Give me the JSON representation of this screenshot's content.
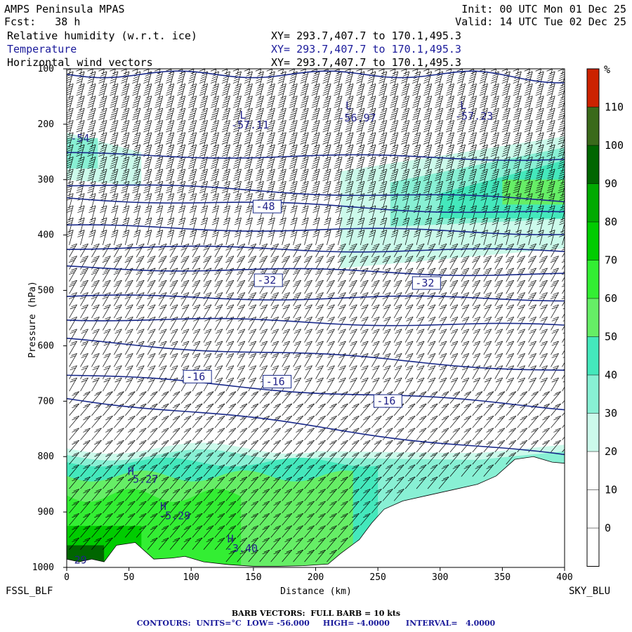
{
  "header": {
    "model": "AMPS Peninsula MPAS",
    "fcst": "Fcst:   38 h",
    "init": "Init: 00 UTC Mon 01 Dec 25",
    "valid": "Valid: 14 UTC Tue 02 Dec 25",
    "fields": [
      {
        "name": "Relative humidity (w.r.t. ice)",
        "xy": "XY= 293.7,407.7 to 170.1,495.3",
        "color": "#000000"
      },
      {
        "name": "Temperature",
        "xy": "XY= 293.7,407.7 to 170.1,495.3",
        "color": "#1a1a9a"
      },
      {
        "name": "Horizontal wind vectors",
        "xy": "XY= 293.7,407.7 to 170.1,495.3",
        "color": "#000000"
      }
    ]
  },
  "footer": {
    "barb": "BARB VECTORS:  FULL BARB = 10 kts",
    "contours": "CONTOURS:  UNITS=°C  LOW= -56.000     HIGH= -4.0000      INTERVAL=   4.0000"
  },
  "chart_data": {
    "type": "contour",
    "xlabel": "Distance (km)",
    "ylabel": "Pressure (hPa)",
    "xlim": [
      0,
      400
    ],
    "ylim": [
      1000,
      100
    ],
    "x_ticks": [
      0,
      50,
      100,
      150,
      200,
      250,
      300,
      350,
      400
    ],
    "y_ticks": [
      100,
      200,
      300,
      400,
      500,
      600,
      700,
      800,
      900,
      1000
    ],
    "endpoint_left": "FSSL_BLF",
    "endpoint_right": "SKY_BLU",
    "colorbar": {
      "unit": "%",
      "labels": [
        0,
        10,
        20,
        30,
        40,
        50,
        60,
        70,
        80,
        90,
        100,
        110
      ],
      "colors": [
        "#ffffff",
        "#ffffff",
        "#ffffff",
        "#ccfaeb",
        "#88f0d4",
        "#44e8bc",
        "#66ee66",
        "#33ee33",
        "#00cc00",
        "#00aa00",
        "#006600",
        "#3a6a1a",
        "#cc2200"
      ]
    },
    "temperature_labels": [
      {
        "text": "-54",
        "x": 3,
        "p": 232
      },
      {
        "text": "-57.11",
        "x": 132,
        "p": 208
      },
      {
        "text": "-56.97",
        "x": 218,
        "p": 195
      },
      {
        "text": "-57.23",
        "x": 312,
        "p": 192
      },
      {
        "text": "-48",
        "x": 152,
        "p": 355
      },
      {
        "text": "-32",
        "x": 153,
        "p": 488
      },
      {
        "text": "-32",
        "x": 280,
        "p": 493
      },
      {
        "text": "-16",
        "x": 96,
        "p": 662
      },
      {
        "text": "-16",
        "x": 160,
        "p": 671
      },
      {
        "text": "-16",
        "x": 249,
        "p": 706
      },
      {
        "text": "-5.27",
        "x": 48,
        "p": 847
      },
      {
        "text": "-5.29",
        "x": 74,
        "p": 913
      },
      {
        "text": "-3.40",
        "x": 128,
        "p": 972
      },
      {
        "text": "29",
        "x": 6,
        "p": 993
      }
    ],
    "extrema": [
      {
        "text": "L",
        "x": 139,
        "p": 190
      },
      {
        "text": "L",
        "x": 224,
        "p": 173
      },
      {
        "text": "L",
        "x": 316,
        "p": 172
      },
      {
        "text": "H",
        "x": 49,
        "p": 833
      },
      {
        "text": "H",
        "x": 75,
        "p": 896
      },
      {
        "text": "H",
        "x": 129,
        "p": 955
      }
    ],
    "isotherms": [
      {
        "t": -52,
        "pl": 255,
        "pr": 262
      },
      {
        "t": -48,
        "pl": 308,
        "pr": 338
      },
      {
        "t": -44,
        "pl": 333,
        "pr": 362
      },
      {
        "t": -40,
        "pl": 385,
        "pr": 396
      },
      {
        "t": -36,
        "pl": 422,
        "pr": 430
      },
      {
        "t": -32,
        "pl": 458,
        "pr": 472
      },
      {
        "t": -28,
        "pl": 512,
        "pr": 515
      },
      {
        "t": -24,
        "pl": 550,
        "pr": 565
      },
      {
        "t": -20,
        "pl": 590,
        "pr": 645
      },
      {
        "t": -16,
        "pl": 652,
        "pr": 712
      },
      {
        "t": -12,
        "pl": 693,
        "pr": 800
      }
    ]
  }
}
